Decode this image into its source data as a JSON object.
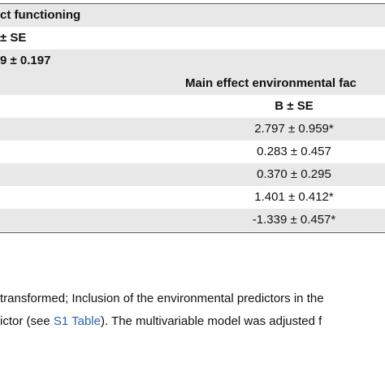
{
  "table": {
    "rows": [
      [
        "ct functioning"
      ],
      [
        "± SE"
      ],
      [
        "9 ± 0.197"
      ],
      [
        "Main effect environmental fac"
      ],
      [
        "B ± SE"
      ],
      [
        "2.797 ± 0.959*"
      ],
      [
        "0.283 ± 0.457"
      ],
      [
        "0.370 ± 0.295"
      ],
      [
        "1.401 ± 0.412*"
      ],
      [
        "-1.339 ± 0.457*"
      ]
    ]
  },
  "footnote": {
    "lines": [
      [
        "transformed; Inclusion of the environmental predictors in the"
      ],
      [
        "ictor (see ",
        "S1 Table",
        "). The multivariable model was adjusted f"
      ]
    ]
  }
}
